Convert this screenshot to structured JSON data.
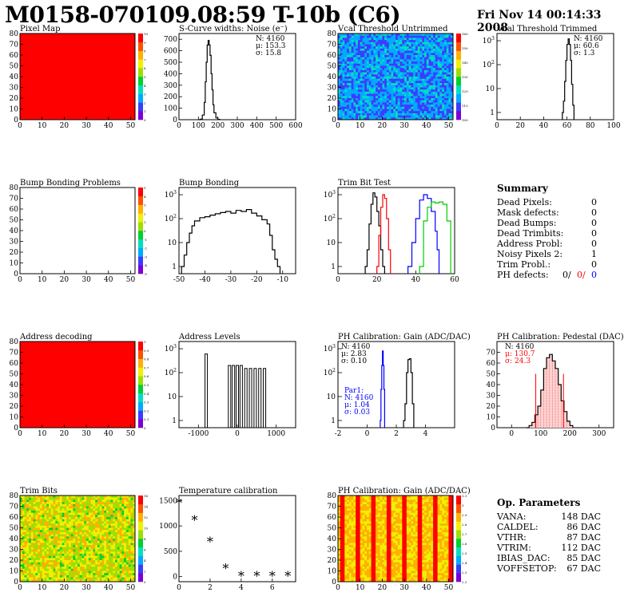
{
  "header": {
    "title": "M0158-070109.08:59 T-10b (C6)",
    "date": "Fri Nov 14 00:14:33 2008"
  },
  "colors": {
    "black": "#000000",
    "red": "#ff0000",
    "blue": "#0000ff",
    "green": "#00cc00",
    "map_red": "#ff0000"
  },
  "chart_data": [
    {
      "id": "pixel-map",
      "type": "heatmap",
      "title": "Pixel Map",
      "xlim": [
        0,
        52
      ],
      "ylim": [
        0,
        80
      ],
      "xticks": [
        0,
        10,
        20,
        30,
        40,
        50
      ],
      "yticks": [
        0,
        10,
        20,
        30,
        40,
        50,
        60,
        70,
        80
      ],
      "fill": "uniform",
      "uniform_value": 10,
      "palette_ticks": [
        "0",
        "1",
        "2",
        "3",
        "4",
        "5",
        "6",
        "7",
        "8",
        "9",
        "10"
      ]
    },
    {
      "id": "scurve-noise",
      "type": "line",
      "title": "S-Curve widths: Noise (e⁻)",
      "xlim": [
        0,
        600
      ],
      "ylim": [
        0,
        750
      ],
      "xticks": [
        0,
        100,
        200,
        300,
        400,
        500,
        600
      ],
      "yticks": [
        0,
        100,
        200,
        300,
        400,
        500,
        600,
        700
      ],
      "stats": [
        "N: 4160",
        "μ: 153.3",
        "σ: 15.8"
      ],
      "series": [
        {
          "color": "black",
          "x": [
            100,
            110,
            120,
            130,
            135,
            140,
            145,
            150,
            155,
            160,
            165,
            170,
            175,
            180,
            190,
            200,
            210
          ],
          "y": [
            0,
            5,
            40,
            150,
            330,
            500,
            650,
            690,
            650,
            560,
            400,
            260,
            130,
            60,
            15,
            3,
            0
          ]
        }
      ]
    },
    {
      "id": "vcal-untrimmed",
      "type": "heatmap",
      "title": "Vcal Threshold Untrimmed",
      "xlim": [
        0,
        52
      ],
      "ylim": [
        0,
        80
      ],
      "xticks": [
        0,
        10,
        20,
        30,
        40,
        50
      ],
      "yticks": [
        0,
        10,
        20,
        30,
        40,
        50,
        60,
        70,
        80
      ],
      "fill": "noise",
      "base_color": "blue",
      "palette_ticks": [
        "100",
        "110",
        "120",
        "130",
        "140",
        "150",
        "160"
      ]
    },
    {
      "id": "vcal-trimmed",
      "type": "line",
      "title": "Vcal Threshold Trimmed",
      "xlim": [
        0,
        100
      ],
      "ylim": [
        0.5,
        2000
      ],
      "log_y": true,
      "xticks": [
        0,
        20,
        40,
        60,
        80,
        100
      ],
      "yticks_log": [
        1,
        10,
        100,
        1000
      ],
      "stats": [
        "N: 4160",
        "μ: 60.6",
        "σ: 1.3"
      ],
      "series": [
        {
          "color": "black",
          "x": [
            56,
            57,
            58,
            59,
            60,
            61,
            62,
            63,
            64,
            65,
            66
          ],
          "y": [
            1,
            3,
            20,
            150,
            700,
            1200,
            700,
            150,
            15,
            2,
            1
          ]
        }
      ]
    },
    {
      "id": "bump-problems",
      "type": "heatmap",
      "title": "Bump Bonding Problems",
      "xlim": [
        0,
        52
      ],
      "ylim": [
        0,
        80
      ],
      "xticks": [
        0,
        10,
        20,
        30,
        40,
        50
      ],
      "yticks": [
        0,
        10,
        20,
        30,
        40,
        50,
        60,
        70,
        80
      ],
      "fill": "empty",
      "palette_ticks": [
        "-5",
        "-4",
        "-3",
        "-2",
        "-1",
        "0",
        "1",
        "2",
        "3",
        "4",
        "5"
      ]
    },
    {
      "id": "bump-bonding",
      "type": "line",
      "title": "Bump Bonding",
      "xlim": [
        -50,
        -5
      ],
      "ylim": [
        0.5,
        2000
      ],
      "log_y": true,
      "xticks": [
        -50,
        -40,
        -30,
        -20,
        -10
      ],
      "yticks_log": [
        1,
        10,
        100,
        1000
      ],
      "series": [
        {
          "color": "black",
          "x": [
            -49,
            -48,
            -47,
            -46,
            -45,
            -44,
            -42,
            -40,
            -38,
            -36,
            -34,
            -32,
            -30,
            -28,
            -26,
            -24,
            -22,
            -20,
            -18,
            -16,
            -15,
            -14,
            -13,
            -12,
            -11
          ],
          "y": [
            1,
            3,
            10,
            25,
            50,
            80,
            110,
            120,
            140,
            160,
            180,
            200,
            170,
            220,
            200,
            240,
            170,
            130,
            90,
            60,
            20,
            5,
            2,
            1,
            0.6
          ]
        }
      ]
    },
    {
      "id": "trim-bit-test",
      "type": "line",
      "title": "Trim Bit Test",
      "xlim": [
        0,
        60
      ],
      "ylim": [
        0.5,
        2000
      ],
      "log_y": true,
      "xticks": [
        0,
        20,
        40,
        60
      ],
      "yticks_log": [
        1,
        10,
        100,
        1000
      ],
      "series": [
        {
          "color": "black",
          "x": [
            14,
            15,
            16,
            17,
            18,
            19,
            20,
            21,
            22,
            23,
            24
          ],
          "y": [
            1,
            5,
            60,
            400,
            1200,
            800,
            200,
            50,
            5,
            1,
            0.6
          ]
        },
        {
          "color": "red",
          "x": [
            20,
            21,
            22,
            23,
            24,
            25,
            26,
            27
          ],
          "y": [
            1,
            20,
            300,
            1000,
            700,
            100,
            5,
            1
          ]
        },
        {
          "color": "blue",
          "x": [
            36,
            38,
            40,
            42,
            44,
            46,
            48,
            50,
            51,
            52
          ],
          "y": [
            1,
            10,
            100,
            600,
            1000,
            700,
            200,
            30,
            5,
            1
          ]
        },
        {
          "color": "green",
          "x": [
            42,
            44,
            46,
            48,
            50,
            52,
            54,
            56,
            58
          ],
          "y": [
            1,
            80,
            300,
            500,
            450,
            500,
            400,
            80,
            1
          ]
        }
      ]
    },
    {
      "id": "address-decoding",
      "type": "heatmap",
      "title": "Address decoding",
      "xlim": [
        0,
        52
      ],
      "ylim": [
        0,
        80
      ],
      "xticks": [
        0,
        10,
        20,
        30,
        40,
        50
      ],
      "yticks": [
        0,
        10,
        20,
        30,
        40,
        50,
        60,
        70,
        80
      ],
      "fill": "uniform",
      "uniform_value": 1,
      "palette_ticks": [
        "0",
        "0.1",
        "0.2",
        "0.3",
        "0.4",
        "0.5",
        "0.6",
        "0.7",
        "0.8",
        "0.9",
        "1"
      ]
    },
    {
      "id": "address-levels",
      "type": "line",
      "title": "Address Levels",
      "xlim": [
        -1500,
        1500
      ],
      "ylim": [
        0.5,
        2000
      ],
      "log_y": true,
      "xticks": [
        -1000,
        0,
        1000
      ],
      "yticks_log": [
        1,
        10,
        100,
        1000
      ],
      "series": [
        {
          "color": "black",
          "spikes": [
            [
              -800,
              600
            ],
            [
              -200,
              200
            ],
            [
              -100,
              200
            ],
            [
              0,
              200
            ],
            [
              100,
              200
            ],
            [
              220,
              150
            ],
            [
              340,
              150
            ],
            [
              460,
              150
            ],
            [
              580,
              150
            ],
            [
              700,
              150
            ]
          ]
        }
      ]
    },
    {
      "id": "ph-gain",
      "type": "line",
      "title": "PH Calibration: Gain (ADC/DAC)",
      "xlim": [
        -2,
        6
      ],
      "ylim": [
        0.5,
        2000
      ],
      "log_y": true,
      "xticks": [
        -2,
        0,
        2,
        4
      ],
      "yticks_log": [
        1,
        10,
        100,
        1000
      ],
      "stats": [
        "N: 4160",
        "μ: 2.83",
        "σ: 0.10"
      ],
      "stats2": [
        "Par1:",
        "N: 4160",
        "μ: 1.04",
        "σ: 0.03"
      ],
      "series": [
        {
          "color": "black",
          "x": [
            2.5,
            2.6,
            2.7,
            2.8,
            2.9,
            3.0,
            3.1,
            3.2
          ],
          "y": [
            1,
            5,
            100,
            350,
            380,
            100,
            5,
            1
          ]
        },
        {
          "color": "blue",
          "x": [
            0.9,
            0.95,
            1.0,
            1.05,
            1.1,
            1.15,
            1.2
          ],
          "y": [
            1,
            20,
            200,
            800,
            200,
            20,
            1
          ]
        }
      ]
    },
    {
      "id": "ph-pedestal",
      "type": "area",
      "title": "PH Calibration: Pedestal (DAC)",
      "xlim": [
        -50,
        350
      ],
      "ylim": [
        0,
        80
      ],
      "xticks": [
        0,
        100,
        200,
        300
      ],
      "yticks": [
        0,
        10,
        20,
        30,
        40,
        50,
        60,
        70
      ],
      "stats": [
        "N: 4160",
        "μ: 130.7",
        "σ: 24.3"
      ],
      "series": [
        {
          "color": "black",
          "x": [
            50,
            60,
            70,
            80,
            90,
            100,
            110,
            120,
            130,
            140,
            150,
            160,
            170,
            180,
            190,
            200,
            210
          ],
          "y": [
            0,
            2,
            5,
            12,
            20,
            35,
            55,
            65,
            68,
            62,
            55,
            40,
            25,
            15,
            6,
            2,
            0
          ]
        }
      ],
      "markers": [
        {
          "color": "red",
          "x": 83
        },
        {
          "color": "red",
          "x": 178
        }
      ]
    },
    {
      "id": "trim-bits",
      "type": "heatmap",
      "title": "Trim Bits",
      "xlim": [
        0,
        52
      ],
      "ylim": [
        0,
        80
      ],
      "xticks": [
        0,
        10,
        20,
        30,
        40,
        50
      ],
      "yticks": [
        0,
        10,
        20,
        30,
        40,
        50,
        60,
        70,
        80
      ],
      "fill": "noise",
      "base_color": "green",
      "palette_ticks": [
        "0",
        "2",
        "4",
        "6",
        "8",
        "10",
        "12",
        "14",
        "16"
      ]
    },
    {
      "id": "temperature-calibration",
      "type": "scatter",
      "title": "Temperature calibration",
      "xlim": [
        0,
        7.5
      ],
      "ylim": [
        -100,
        1600
      ],
      "xticks": [
        0,
        2,
        4,
        6
      ],
      "yticks": [
        0,
        500,
        1000,
        1500
      ],
      "series": [
        {
          "color": "black",
          "x": [
            0,
            1,
            2,
            3,
            4,
            5,
            6,
            7
          ],
          "y": [
            1430,
            1090,
            660,
            140,
            -10,
            -10,
            -10,
            -10
          ]
        }
      ]
    },
    {
      "id": "ph-gain-map",
      "type": "heatmap",
      "title": "PH Calibration: Gain (ADC/DAC)",
      "xlim": [
        0,
        52
      ],
      "ylim": [
        0,
        80
      ],
      "xticks": [
        0,
        10,
        20,
        30,
        40,
        50
      ],
      "yticks": [
        0,
        10,
        20,
        30,
        40,
        50,
        60,
        70,
        80
      ],
      "fill": "stripes",
      "base_color": "yellow",
      "palette_ticks": [
        "2.2",
        "2.3",
        "2.4",
        "2.5",
        "2.6",
        "2.7",
        "2.8",
        "2.9",
        "3",
        "3.1"
      ]
    }
  ],
  "summary": {
    "heading": "Summary",
    "rows": [
      {
        "label": "Dead Pixels:",
        "value": "0"
      },
      {
        "label": "Mask defects:",
        "value": "0"
      },
      {
        "label": "Dead Bumps:",
        "value": "0"
      },
      {
        "label": "Dead Trimbits:",
        "value": "0"
      },
      {
        "label": "Address Probl:",
        "value": "0"
      },
      {
        "label": "Noisy Pixels 2:",
        "value": "1"
      },
      {
        "label": "Trim Probl.:",
        "value": "0"
      }
    ],
    "ph_label": "PH defects:",
    "ph_values": [
      "0/",
      "0/",
      "0"
    ]
  },
  "op_params": {
    "heading": "Op. Parameters",
    "rows": [
      {
        "label": "VANA:",
        "value": "148 DAC"
      },
      {
        "label": "CALDEL:",
        "value": "86 DAC"
      },
      {
        "label": "VTHR:",
        "value": "87 DAC"
      },
      {
        "label": "VTRIM:",
        "value": "112 DAC"
      },
      {
        "label": "IBIAS_DAC:",
        "value": "85 DAC"
      },
      {
        "label": "VOFFSETOP:",
        "value": "67 DAC"
      }
    ]
  }
}
